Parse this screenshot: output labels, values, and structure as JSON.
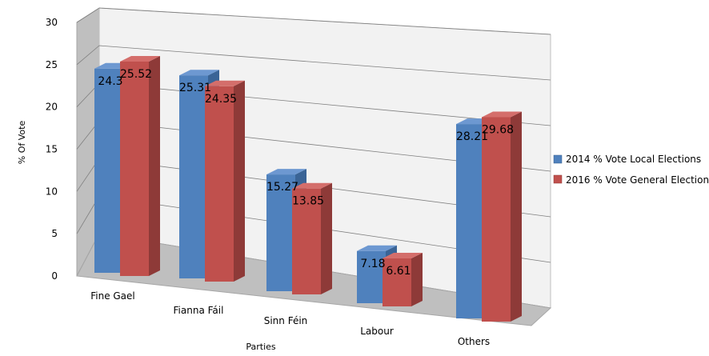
{
  "chart_data": {
    "type": "bar",
    "categories": [
      "Fine Gael",
      "Fianna Fáil",
      "Sinn Féin",
      "Labour",
      "Others"
    ],
    "series": [
      {
        "name": "2014 % Vote Local Elections",
        "values": [
          24.3,
          25.31,
          15.27,
          7.18,
          28.21
        ],
        "color": "#4F81BD"
      },
      {
        "name": "2016 % Vote General Election",
        "values": [
          25.52,
          24.35,
          13.85,
          6.61,
          29.68
        ],
        "color": "#C0504D"
      }
    ],
    "data_labels": [
      [
        "24.3",
        "25.31",
        "15.27",
        "7.18",
        "28.21"
      ],
      [
        "25.52",
        "24.35",
        "13.85",
        "6.61",
        "29.68"
      ]
    ],
    "title": "",
    "xlabel": "Parties",
    "ylabel": "% Of Vote",
    "ylim": [
      0,
      30
    ],
    "yticks": [
      0,
      5,
      10,
      15,
      20,
      25,
      30
    ],
    "grid": true,
    "legend_position": "right",
    "three_d": true
  }
}
